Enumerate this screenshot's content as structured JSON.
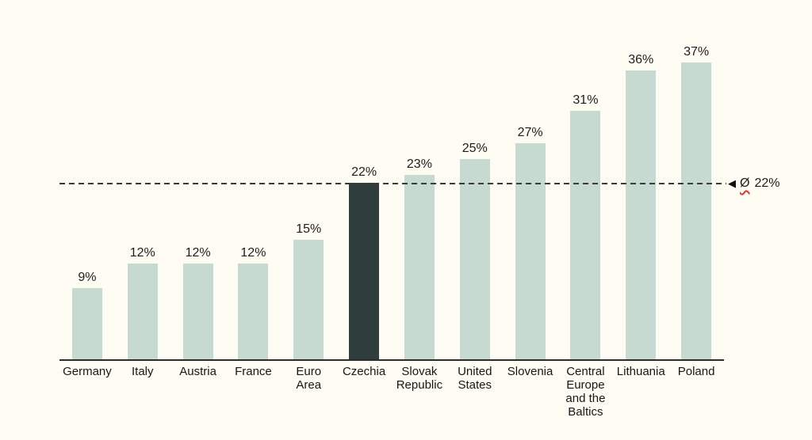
{
  "chart_data": {
    "type": "bar",
    "categories": [
      "Germany",
      "Italy",
      "Austria",
      "France",
      "Euro Area",
      "Czechia",
      "Slovak Republic",
      "United States",
      "Slovenia",
      "Central Europe and the Baltics",
      "Lithuania",
      "Poland"
    ],
    "category_lines": [
      [
        "Germany"
      ],
      [
        "Italy"
      ],
      [
        "Austria"
      ],
      [
        "France"
      ],
      [
        "Euro",
        "Area"
      ],
      [
        "Czechia"
      ],
      [
        "Slovak",
        "Republic"
      ],
      [
        "United",
        "States"
      ],
      [
        "Slovenia"
      ],
      [
        "Central",
        "Europe",
        "and the",
        "Baltics"
      ],
      [
        "Lithuania"
      ],
      [
        "Poland"
      ]
    ],
    "values": [
      9,
      12,
      12,
      12,
      15,
      22,
      23,
      25,
      27,
      31,
      36,
      37
    ],
    "value_labels": [
      "9%",
      "12%",
      "12%",
      "12%",
      "15%",
      "22%",
      "23%",
      "25%",
      "27%",
      "31%",
      "36%",
      "37%"
    ],
    "unit": "%",
    "title": "",
    "xlabel": "",
    "ylabel": "",
    "ylim": [
      0,
      40
    ],
    "grid": false,
    "legend": false,
    "highlight_index": 5,
    "average_line": {
      "value": 22,
      "arrow_icon": "◀",
      "symbol": "Ø",
      "value_label": "22%",
      "full_label": "Ø 22%"
    },
    "colors": {
      "background": "#fffdf3",
      "bar": "#c7dad2",
      "highlight_bar": "#2f3e3d",
      "axis": "#2c2c2c",
      "dashed_line": "#3a3a3a",
      "text": "#1a1a1a",
      "squiggle": "#e03a2e"
    }
  }
}
